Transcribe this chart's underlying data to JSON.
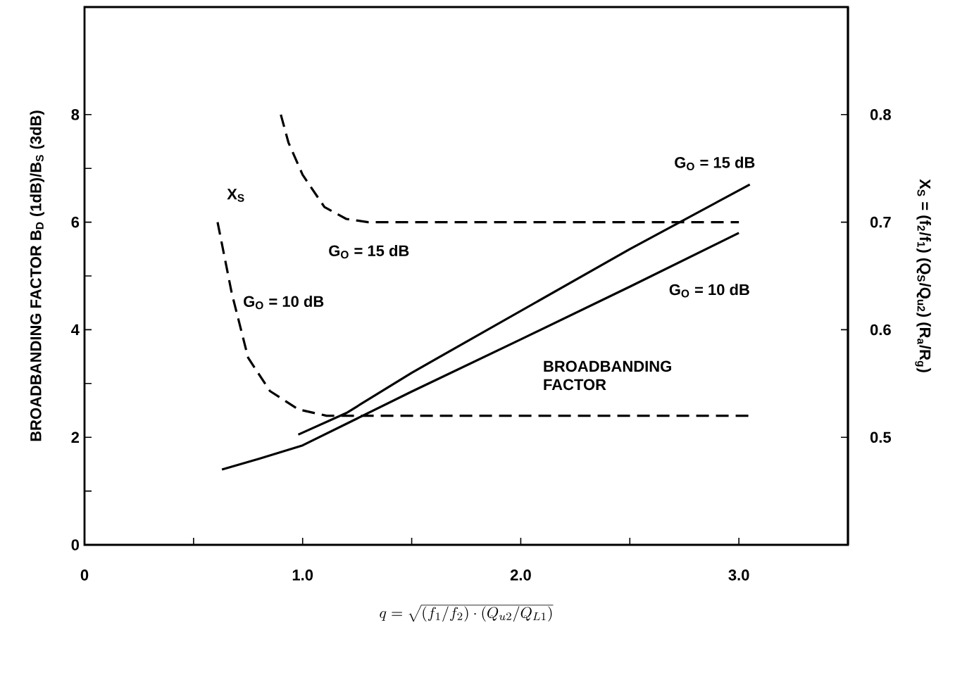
{
  "chart_data": {
    "type": "line",
    "xlabel": "q=\\sqrt{(f_1/f_2)\\cdot(Q_{u2}/Q_{L1})}",
    "ylabel": "BROADBANDING  FACTOR  B$_{D}$ (1dB)/B$_{S}$ (3dB)",
    "y2label": "X$_{S}$ = (f$_{2}$/f$_{1}$)    (Q$_{S}$/Q$_{u2}$) (R$_{a}$/R$_{g}$)",
    "xlim": [
      0,
      3.5
    ],
    "xticks": [
      0,
      {
        "value": 0.5,
        "label": null
      },
      {
        "value": 1,
        "label": "1.0"
      },
      {
        "value": 1.5,
        "label": null
      },
      {
        "value": 2,
        "label": "2.0"
      },
      {
        "value": 2.5,
        "label": null
      },
      {
        "value": 3,
        "label": "3.0"
      }
    ],
    "ylim": [
      0,
      10
    ],
    "yticks": [
      0,
      {
        "value": 1,
        "label": null
      },
      2,
      {
        "value": 3,
        "label": null
      },
      4,
      {
        "value": 5,
        "label": null
      },
      6,
      {
        "value": 7,
        "label": null
      },
      8
    ],
    "y2lim": [
      0.4,
      0.9
    ],
    "y2ticks": [
      0.5,
      0.6,
      0.7,
      0.8
    ],
    "grid": false,
    "marker": "none",
    "series": [
      {
        "name": "G$_{O}$ = 15 dB",
        "color": "#000000",
        "line_style": "solid",
        "x": [
          0.98,
          1.2,
          1.5,
          2.0,
          2.5,
          3.05
        ],
        "values": [
          2.05,
          2.45,
          3.2,
          4.35,
          5.5,
          6.7
        ]
      },
      {
        "name": "G$_{O}$ = 10 dB",
        "color": "#000000",
        "line_style": "solid",
        "x": [
          0.63,
          0.8,
          1.0,
          1.25,
          1.5,
          2.0,
          2.5,
          3.0
        ],
        "values": [
          1.4,
          1.6,
          1.85,
          2.35,
          2.85,
          3.82,
          4.8,
          5.8
        ]
      },
      {
        "name": "G$_{O}$ = 15 dB",
        "color": "#000000",
        "line_style": "dashed",
        "axis": "y2",
        "x": [
          0.9,
          0.935,
          1.0,
          1.1,
          1.2,
          1.3,
          3.0
        ],
        "values": [
          0.8,
          0.774,
          0.744,
          0.714,
          0.703,
          0.7,
          0.7
        ]
      },
      {
        "name": "G$_{O}$ = 10 dB",
        "color": "#000000",
        "line_style": "dashed",
        "axis": "y2",
        "x": [
          0.61,
          0.675,
          0.75,
          0.85,
          0.98,
          1.11,
          3.06
        ],
        "values": [
          0.7,
          0.634,
          0.574,
          0.543,
          0.526,
          0.52,
          0.52
        ]
      }
    ],
    "annotations": [
      "X$_{S}$",
      "BROADBANDING FACTOR"
    ]
  }
}
